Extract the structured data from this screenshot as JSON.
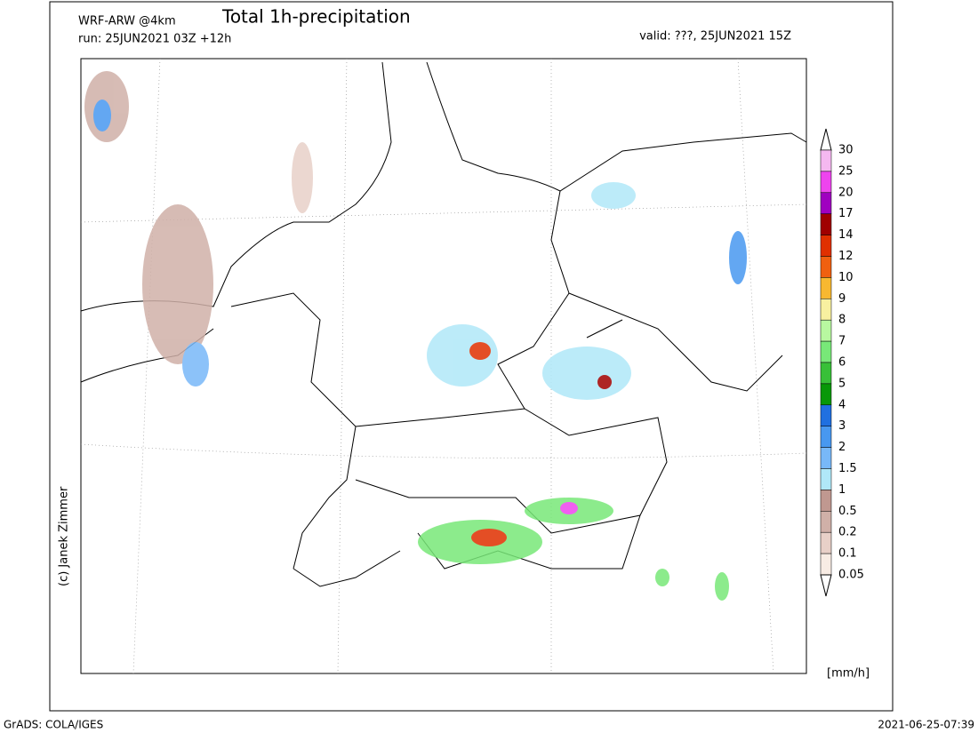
{
  "header": {
    "model": "WRF-ARW @4km",
    "title": "Total 1h-precipitation",
    "run": "run: 25JUN2021 03Z +12h",
    "valid": "valid: ???, 25JUN2021 15Z"
  },
  "credit": "(c) Janek Zimmer",
  "legend": {
    "unit": "[mm/h]",
    "levels": [
      30,
      25,
      20,
      17,
      14,
      12,
      10,
      9,
      8,
      7,
      6,
      5,
      4,
      3,
      2,
      1.5,
      1,
      0.5,
      0.2,
      0.1,
      0.05
    ],
    "colors": [
      "#f5b8f0",
      "#ee44ee",
      "#a000c0",
      "#a00000",
      "#e03000",
      "#f06010",
      "#f8b830",
      "#f8f0a0",
      "#b8f8a0",
      "#78e878",
      "#38c038",
      "#089808",
      "#2070e0",
      "#4898f0",
      "#78b8f8",
      "#b0e8f8",
      "#c09890",
      "#d0b0a8",
      "#e8d0c8",
      "#f8ece4"
    ]
  },
  "footer": {
    "left": "GrADS: COLA/IGES",
    "right": "2021-06-25-07:39"
  }
}
